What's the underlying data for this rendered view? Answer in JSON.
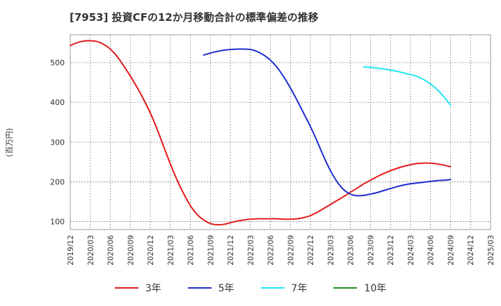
{
  "chart_data": {
    "type": "line",
    "title": "[7953]  投資CFの12か月移動合計の標準偏差の推移",
    "ylabel": "(百万円)",
    "xlabel": "",
    "ylim": [
      80,
      570
    ],
    "y_ticks": [
      100,
      200,
      300,
      400,
      500
    ],
    "x_ticks": [
      "2019/12",
      "2020/03",
      "2020/06",
      "2020/09",
      "2020/12",
      "2021/03",
      "2021/06",
      "2021/09",
      "2021/12",
      "2022/03",
      "2022/06",
      "2022/09",
      "2022/12",
      "2023/03",
      "2023/06",
      "2023/09",
      "2023/12",
      "2024/03",
      "2024/06",
      "2024/09",
      "2024/12",
      "2025/03"
    ],
    "grid": true,
    "legend_position": "bottom",
    "series": [
      {
        "name": "3年",
        "color": "#e31a1c",
        "x": [
          "2019/12",
          "2020/01",
          "2020/02",
          "2020/03",
          "2020/04",
          "2020/05",
          "2020/06",
          "2020/07",
          "2020/08",
          "2020/09",
          "2020/10",
          "2020/11",
          "2020/12",
          "2021/01",
          "2021/02",
          "2021/03",
          "2021/04",
          "2021/05",
          "2021/06",
          "2021/07",
          "2021/08",
          "2021/09",
          "2021/10",
          "2021/11",
          "2021/12",
          "2022/01",
          "2022/02",
          "2022/03",
          "2022/04",
          "2022/05",
          "2022/06",
          "2022/07",
          "2022/08",
          "2022/09",
          "2022/10",
          "2022/11",
          "2022/12",
          "2023/01",
          "2023/02",
          "2023/03",
          "2023/04",
          "2023/05",
          "2023/06",
          "2023/07",
          "2023/08",
          "2023/09",
          "2023/10",
          "2023/11",
          "2023/12",
          "2024/01",
          "2024/02",
          "2024/03",
          "2024/04",
          "2024/05",
          "2024/06",
          "2024/07",
          "2024/08",
          "2024/09"
        ],
        "values": [
          543,
          550,
          554,
          555,
          553,
          546,
          534,
          516,
          492,
          466,
          438,
          407,
          373,
          333,
          289,
          245,
          205,
          170,
          140,
          118,
          104,
          95,
          92,
          93,
          97,
          101,
          104,
          106,
          107,
          107,
          107,
          107,
          106,
          106,
          107,
          110,
          115,
          123,
          133,
          143,
          153,
          163,
          174,
          184,
          195,
          204,
          213,
          221,
          228,
          234,
          239,
          243,
          246,
          247,
          247,
          245,
          242,
          238
        ]
      },
      {
        "name": "5年",
        "color": "#1f2ccc",
        "x": [
          "2021/08",
          "2021/09",
          "2021/10",
          "2021/11",
          "2021/12",
          "2022/01",
          "2022/02",
          "2022/03",
          "2022/04",
          "2022/05",
          "2022/06",
          "2022/07",
          "2022/08",
          "2022/09",
          "2022/10",
          "2022/11",
          "2022/12",
          "2023/01",
          "2023/02",
          "2023/03",
          "2023/04",
          "2023/05",
          "2023/06",
          "2023/07",
          "2023/08",
          "2023/09",
          "2023/10",
          "2023/11",
          "2023/12",
          "2024/01",
          "2024/02",
          "2024/03",
          "2024/04",
          "2024/05",
          "2024/06",
          "2024/07",
          "2024/08",
          "2024/09"
        ],
        "values": [
          519,
          524,
          528,
          531,
          533,
          534,
          534,
          533,
          528,
          519,
          506,
          488,
          464,
          436,
          405,
          372,
          339,
          302,
          263,
          228,
          200,
          180,
          169,
          165,
          166,
          169,
          173,
          178,
          183,
          188,
          192,
          195,
          197,
          199,
          201,
          203,
          204,
          206
        ]
      },
      {
        "name": "7年",
        "color": "#22e5f0",
        "x": [
          "2023/08",
          "2023/09",
          "2023/10",
          "2023/11",
          "2023/12",
          "2024/01",
          "2024/02",
          "2024/03",
          "2024/04",
          "2024/05",
          "2024/06",
          "2024/07",
          "2024/08",
          "2024/09"
        ],
        "values": [
          489,
          488,
          486,
          484,
          481,
          478,
          474,
          470,
          465,
          457,
          446,
          432,
          414,
          393
        ]
      },
      {
        "name": "10年",
        "color": "#228b22",
        "x": [],
        "values": []
      }
    ]
  }
}
